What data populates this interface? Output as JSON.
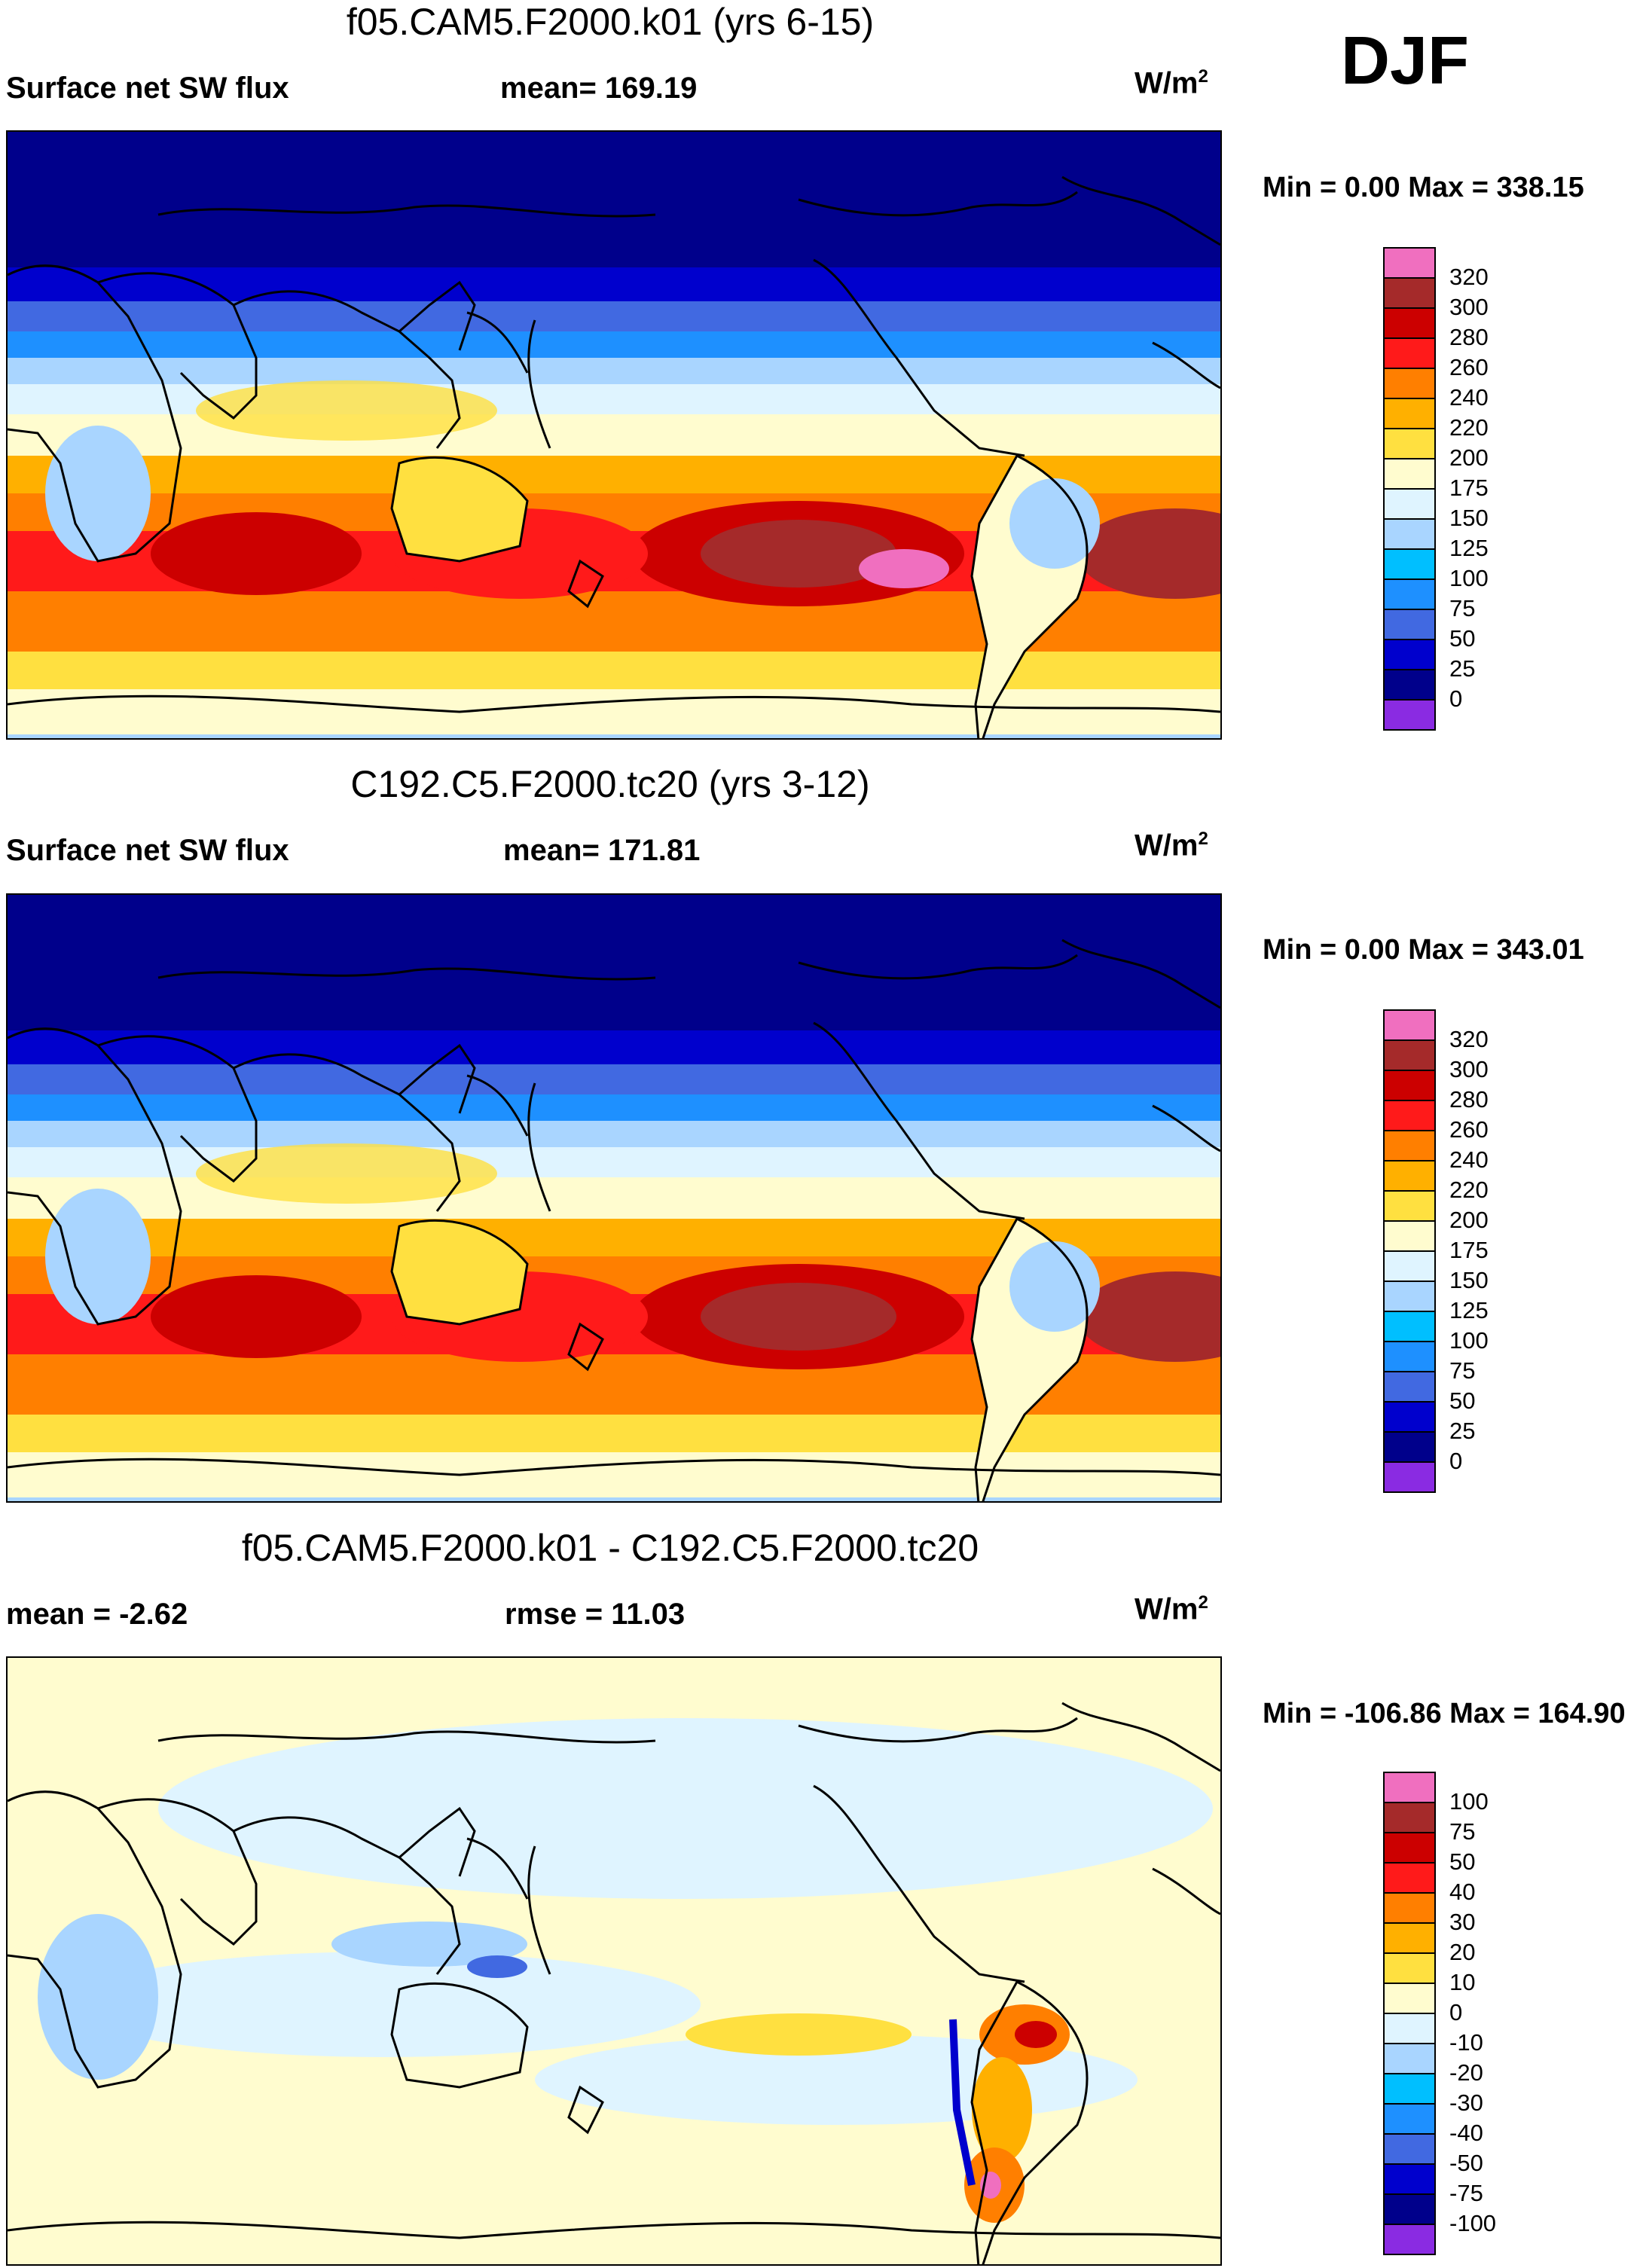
{
  "season": "DJF",
  "panels": [
    {
      "title": "f05.CAM5.F2000.k01 (yrs 6-15)",
      "left_label": "Surface net SW flux",
      "center_label": "mean= 169.19",
      "units": "W/m",
      "units_exp": "2",
      "minmax": "Min =   0.00 Max = 338.15",
      "legend_levels": [
        "320",
        "300",
        "280",
        "260",
        "240",
        "220",
        "200",
        "175",
        "150",
        "125",
        "100",
        "75",
        "50",
        "25",
        "0"
      ],
      "legend_colors": [
        "#f06fbf",
        "#a52a2a",
        "#cc0000",
        "#ff1a1a",
        "#ff7f00",
        "#ffb000",
        "#ffe040",
        "#fffccf",
        "#dff4ff",
        "#a9d5ff",
        "#00bfff",
        "#1e90ff",
        "#4169e1",
        "#0000cd",
        "#00008b",
        "#8a2be2"
      ],
      "field": "abs"
    },
    {
      "title": "C192.C5.F2000.tc20 (yrs 3-12)",
      "left_label": "Surface net SW flux",
      "center_label": "mean= 171.81",
      "units": "W/m",
      "units_exp": "2",
      "minmax": "Min =   0.00 Max = 343.01",
      "legend_levels": [
        "320",
        "300",
        "280",
        "260",
        "240",
        "220",
        "200",
        "175",
        "150",
        "125",
        "100",
        "75",
        "50",
        "25",
        "0"
      ],
      "legend_colors": [
        "#f06fbf",
        "#a52a2a",
        "#cc0000",
        "#ff1a1a",
        "#ff7f00",
        "#ffb000",
        "#ffe040",
        "#fffccf",
        "#dff4ff",
        "#a9d5ff",
        "#00bfff",
        "#1e90ff",
        "#4169e1",
        "#0000cd",
        "#00008b",
        "#8a2be2"
      ],
      "field": "abs"
    },
    {
      "title": "f05.CAM5.F2000.k01 - C192.C5.F2000.tc20",
      "left_label": "mean =  -2.62",
      "center_label": "rmse =  11.03",
      "units": "W/m",
      "units_exp": "2",
      "minmax": "Min = -106.86 Max = 164.90",
      "legend_levels": [
        "100",
        "75",
        "50",
        "40",
        "30",
        "20",
        "10",
        "0",
        "-10",
        "-20",
        "-30",
        "-40",
        "-50",
        "-75",
        "-100"
      ],
      "legend_colors": [
        "#f06fbf",
        "#a52a2a",
        "#cc0000",
        "#ff1a1a",
        "#ff7f00",
        "#ffb000",
        "#ffe040",
        "#fffccf",
        "#dff4ff",
        "#a9d5ff",
        "#00bfff",
        "#1e90ff",
        "#4169e1",
        "#0000cd",
        "#00008b",
        "#8a2be2"
      ],
      "field": "diff"
    }
  ]
}
